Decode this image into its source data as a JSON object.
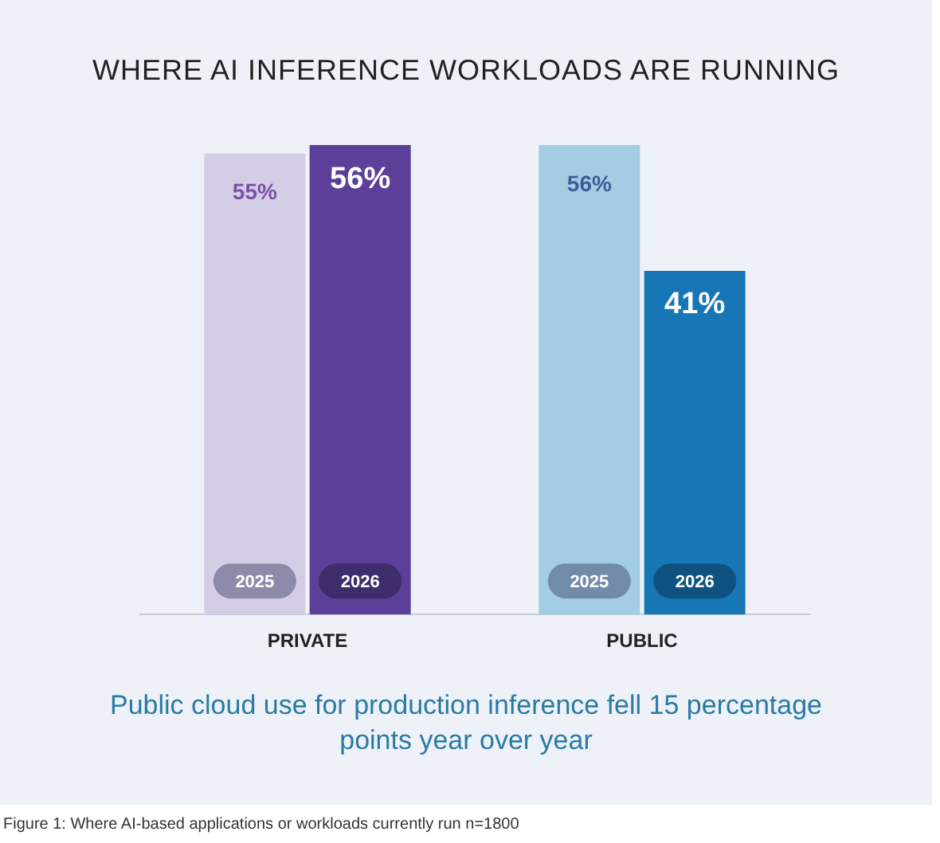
{
  "chart_data": {
    "type": "bar",
    "title": "WHERE AI INFERENCE WORKLOADS ARE RUNNING",
    "categories": [
      "PRIVATE",
      "PUBLIC"
    ],
    "series": [
      {
        "name": "2025",
        "colors": [
          "#d3cde6",
          "#a3cde3"
        ],
        "values": [
          55,
          56
        ],
        "value_labels": [
          "55%",
          "56%"
        ]
      },
      {
        "name": "2026",
        "colors": [
          "#5b3f99",
          "#1676b6"
        ],
        "values": [
          56,
          41
        ],
        "value_labels": [
          "56%",
          "41%"
        ]
      }
    ],
    "grid": false,
    "legend": false,
    "annotations": [
      "Public cloud use for production inference fell 15 percentage points year over year",
      "Figure 1: Where AI-based applications or workloads currently run n=1800"
    ]
  }
}
